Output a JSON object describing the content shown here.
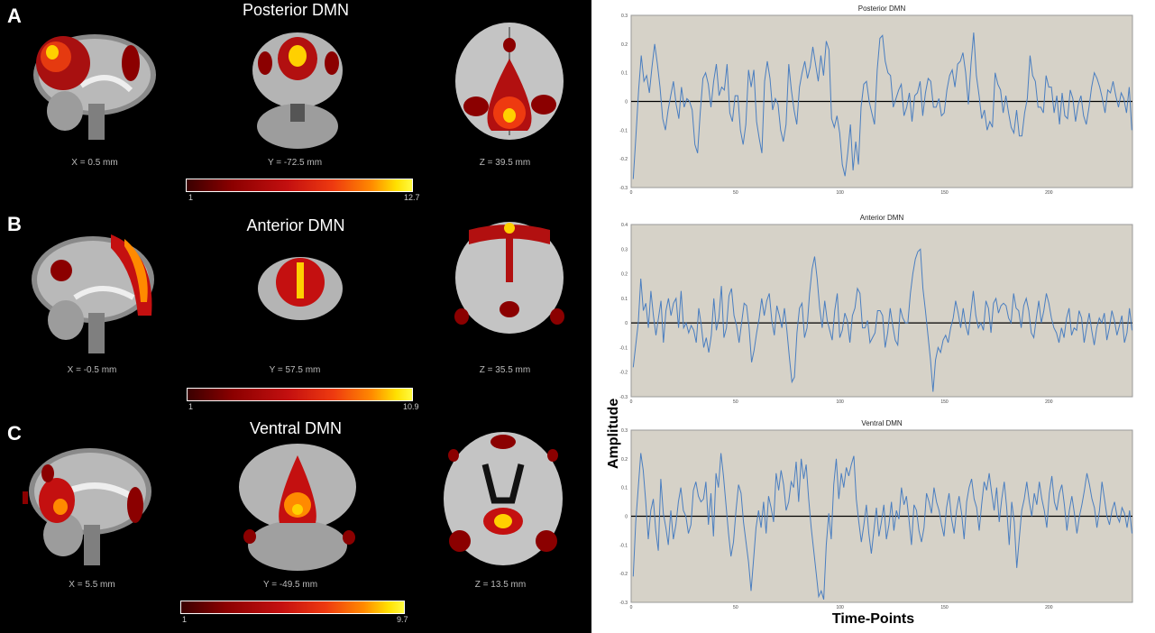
{
  "panels": [
    {
      "letter": "A",
      "title": "Posterior DMN",
      "coords": [
        "X = 0.5 mm",
        "Y = -72.5 mm",
        "Z = 39.5 mm"
      ],
      "cbar": {
        "min": "1",
        "max": "12.7"
      }
    },
    {
      "letter": "B",
      "title": "Anterior DMN",
      "coords": [
        "X = -0.5 mm",
        "Y = 57.5 mm",
        "Z = 35.5 mm"
      ],
      "cbar": {
        "min": "1",
        "max": "10.9"
      }
    },
    {
      "letter": "C",
      "title": "Ventral DMN",
      "coords": [
        "X = 5.5 mm",
        "Y = -49.5 mm",
        "Z = 13.5 mm"
      ],
      "cbar": {
        "min": "1",
        "max": "9.7"
      }
    }
  ],
  "colors": {
    "plot_bg": "#d6d2c8",
    "series": "#4a7ec0",
    "zero_line": "#000000",
    "colormap": [
      "#3a0000",
      "#8b0000",
      "#c41010",
      "#ee3a10",
      "#ff8a00",
      "#ffe000"
    ]
  },
  "ylabel": "Amplitude",
  "xlabel": "Time-Points",
  "chart_data": [
    {
      "type": "line",
      "title": "Posterior DMN",
      "xlim": [
        0,
        240
      ],
      "ylim": [
        -0.3,
        0.3
      ],
      "yticks": [
        "0.3",
        "0.2",
        "0.1",
        "0",
        "-0.1",
        "-0.2",
        "-0.3"
      ],
      "xticks": [
        {
          "v": 0,
          "l": "0"
        },
        {
          "v": 50,
          "l": "50"
        },
        {
          "v": 100,
          "l": "100"
        },
        {
          "v": 150,
          "l": "150"
        },
        {
          "v": 200,
          "l": "200"
        }
      ],
      "values": [
        -0.27,
        -0.12,
        0.04,
        0.16,
        0.07,
        0.09,
        0.03,
        0.12,
        0.2,
        0.13,
        0.05,
        -0.06,
        -0.1,
        -0.03,
        0.02,
        0.07,
        -0.01,
        -0.06,
        0.05,
        -0.02,
        0.01,
        0.0,
        -0.03,
        -0.15,
        -0.18,
        -0.04,
        0.08,
        0.1,
        0.06,
        -0.02,
        0.07,
        0.13,
        0.02,
        0.05,
        0.04,
        0.13,
        -0.04,
        -0.07,
        0.02,
        0.02,
        -0.1,
        -0.15,
        -0.08,
        0.11,
        0.05,
        0.11,
        -0.07,
        -0.13,
        -0.18,
        0.07,
        0.14,
        0.08,
        -0.03,
        0.01,
        -0.01,
        -0.1,
        -0.14,
        -0.08,
        0.13,
        0.04,
        -0.03,
        -0.08,
        0.05,
        0.1,
        0.14,
        0.08,
        0.12,
        0.19,
        0.13,
        0.07,
        0.16,
        0.09,
        0.21,
        0.18,
        -0.06,
        -0.09,
        -0.05,
        -0.11,
        -0.22,
        -0.26,
        -0.18,
        -0.08,
        -0.24,
        -0.14,
        -0.22,
        -0.02,
        0.06,
        0.07,
        0.0,
        -0.04,
        -0.08,
        0.11,
        0.22,
        0.23,
        0.14,
        0.1,
        0.09,
        -0.02,
        0.01,
        0.04,
        0.06,
        -0.05,
        -0.02,
        0.03,
        -0.07,
        0.02,
        0.03,
        0.07,
        -0.05,
        0.03,
        0.08,
        0.07,
        -0.02,
        -0.02,
        0.01,
        -0.05,
        -0.04,
        0.04,
        0.09,
        0.11,
        0.05,
        0.13,
        0.14,
        0.17,
        0.1,
        -0.01,
        0.13,
        0.24,
        0.09,
        0.02,
        -0.06,
        -0.03,
        -0.1,
        -0.07,
        -0.09,
        0.1,
        0.06,
        0.04,
        -0.04,
        0.02,
        -0.04,
        -0.09,
        -0.11,
        -0.03,
        -0.12,
        -0.12,
        -0.04,
        0.01,
        0.16,
        0.09,
        0.07,
        -0.02,
        -0.02,
        -0.04,
        0.09,
        0.05,
        0.05,
        -0.04,
        0.02,
        -0.08,
        0.03,
        -0.05,
        -0.06,
        0.04,
        0.01,
        -0.07,
        -0.01,
        0.02,
        -0.05,
        -0.08,
        -0.02,
        0.05,
        0.1,
        0.08,
        0.05,
        0.01,
        -0.04,
        0.04,
        0.03,
        0.07,
        0.02,
        -0.02,
        0.03,
        0.01,
        -0.04,
        0.05,
        -0.1
      ]
    },
    {
      "type": "line",
      "title": "Anterior DMN",
      "xlim": [
        0,
        240
      ],
      "ylim": [
        -0.3,
        0.4
      ],
      "yticks": [
        "0.4",
        "0.3",
        "0.2",
        "0.1",
        "0",
        "-0.1",
        "-0.2",
        "-0.3"
      ],
      "xticks": [
        {
          "v": 0,
          "l": "0"
        },
        {
          "v": 50,
          "l": "50"
        },
        {
          "v": 100,
          "l": "100"
        },
        {
          "v": 150,
          "l": "150"
        },
        {
          "v": 200,
          "l": "200"
        }
      ],
      "values": [
        -0.18,
        -0.09,
        0.0,
        0.18,
        0.05,
        0.08,
        -0.02,
        0.13,
        0.03,
        -0.05,
        0.02,
        0.09,
        -0.08,
        0.05,
        0.1,
        0.03,
        0.08,
        0.1,
        -0.02,
        0.13,
        -0.02,
        0.0,
        -0.04,
        -0.01,
        -0.03,
        -0.08,
        0.06,
        -0.01,
        -0.1,
        -0.06,
        -0.12,
        -0.05,
        0.1,
        -0.03,
        0.02,
        0.15,
        -0.06,
        -0.02,
        0.11,
        0.14,
        0.03,
        -0.01,
        -0.08,
        0.0,
        0.08,
        0.07,
        -0.02,
        -0.16,
        -0.11,
        -0.04,
        0.02,
        0.1,
        0.03,
        0.09,
        0.12,
        0.01,
        -0.05,
        0.07,
        0.03,
        -0.02,
        0.06,
        -0.03,
        -0.14,
        -0.24,
        -0.22,
        -0.04,
        0.06,
        0.08,
        -0.06,
        -0.02,
        0.12,
        0.22,
        0.27,
        0.18,
        0.06,
        -0.02,
        0.09,
        0.01,
        -0.03,
        -0.07,
        0.05,
        0.12,
        -0.06,
        -0.03,
        0.04,
        0.01,
        -0.08,
        0.03,
        0.06,
        0.14,
        0.12,
        -0.02,
        -0.02,
        0.01,
        -0.08,
        -0.06,
        -0.04,
        0.05,
        0.05,
        0.03,
        -0.1,
        -0.04,
        0.06,
        -0.01,
        -0.07,
        -0.09,
        0.06,
        0.02,
        0.0,
        0.0,
        0.12,
        0.2,
        0.26,
        0.29,
        0.3,
        0.14,
        0.05,
        -0.05,
        -0.15,
        -0.28,
        -0.15,
        -0.1,
        -0.12,
        -0.07,
        -0.05,
        -0.08,
        -0.02,
        0.02,
        0.09,
        0.04,
        -0.02,
        0.06,
        -0.01,
        -0.05,
        0.04,
        0.13,
        0.03,
        -0.02,
        0.0,
        -0.03,
        0.09,
        0.06,
        -0.04,
        0.08,
        0.1,
        0.04,
        0.07,
        0.08,
        0.07,
        0.02,
        0.0,
        0.12,
        0.06,
        0.05,
        -0.02,
        0.07,
        0.1,
        0.05,
        -0.04,
        -0.06,
        0.02,
        0.09,
        0.0,
        0.05,
        0.12,
        0.08,
        0.02,
        -0.02,
        -0.04,
        -0.08,
        -0.02,
        -0.06,
        0.02,
        0.06,
        -0.05,
        -0.02,
        -0.03,
        0.05,
        0.02,
        -0.08,
        -0.02,
        0.04,
        -0.03,
        -0.09,
        -0.02,
        0.02,
        0.0,
        0.04,
        -0.07,
        -0.02,
        0.05,
        0.01,
        -0.05,
        -0.01,
        0.03,
        -0.08,
        -0.04,
        0.06,
        -0.03
      ]
    },
    {
      "type": "line",
      "title": "Ventral DMN",
      "xlim": [
        0,
        240
      ],
      "ylim": [
        -0.3,
        0.3
      ],
      "yticks": [
        "0.3",
        "0.2",
        "0.1",
        "0",
        "-0.1",
        "-0.2",
        "-0.3"
      ],
      "xticks": [
        {
          "v": 0,
          "l": "0"
        },
        {
          "v": 50,
          "l": "50"
        },
        {
          "v": 100,
          "l": "100"
        },
        {
          "v": 150,
          "l": "150"
        },
        {
          "v": 200,
          "l": "200"
        }
      ],
      "values": [
        -0.21,
        -0.02,
        0.1,
        0.22,
        0.16,
        0.05,
        -0.08,
        0.02,
        0.06,
        -0.05,
        -0.12,
        0.13,
        0.01,
        -0.04,
        -0.1,
        0.02,
        -0.08,
        -0.03,
        0.05,
        0.1,
        0.02,
        0.0,
        -0.06,
        -0.03,
        0.09,
        0.12,
        0.07,
        0.05,
        0.06,
        0.12,
        -0.03,
        0.08,
        -0.07,
        0.15,
        0.1,
        0.22,
        0.14,
        0.04,
        -0.06,
        -0.14,
        -0.09,
        0.02,
        0.11,
        0.08,
        -0.02,
        -0.09,
        -0.16,
        -0.26,
        -0.15,
        -0.04,
        0.02,
        -0.04,
        0.05,
        -0.06,
        0.07,
        0.03,
        -0.02,
        0.15,
        0.09,
        0.16,
        0.11,
        0.02,
        0.05,
        0.12,
        0.1,
        0.19,
        0.05,
        0.2,
        0.13,
        0.18,
        0.06,
        -0.04,
        -0.12,
        -0.2,
        -0.28,
        -0.26,
        -0.29,
        -0.1,
        0.01,
        -0.08,
        0.11,
        0.2,
        0.06,
        0.15,
        0.1,
        0.17,
        0.14,
        0.18,
        0.21,
        0.06,
        -0.02,
        -0.09,
        -0.03,
        0.04,
        -0.06,
        -0.13,
        -0.05,
        0.03,
        -0.07,
        -0.02,
        0.04,
        -0.08,
        -0.03,
        0.05,
        -0.05,
        0.02,
        -0.01,
        0.1,
        0.04,
        0.07,
        -0.01,
        -0.1,
        0.04,
        0.02,
        -0.05,
        -0.09,
        -0.04,
        0.08,
        0.05,
        0.01,
        0.1,
        0.05,
        0.02,
        -0.03,
        -0.07,
        0.03,
        0.08,
        -0.01,
        -0.06,
        0.02,
        0.07,
        0.01,
        -0.08,
        0.05,
        0.1,
        0.13,
        0.06,
        0.03,
        -0.05,
        0.04,
        0.12,
        0.09,
        0.15,
        0.08,
        0.02,
        0.1,
        -0.02,
        0.06,
        0.12,
        0.03,
        -0.1,
        0.05,
        -0.02,
        -0.18,
        -0.08,
        0.02,
        0.06,
        0.12,
        0.05,
        0.0,
        0.08,
        0.04,
        0.12,
        0.06,
        0.02,
        -0.04,
        0.08,
        0.14,
        0.05,
        0.02,
        0.08,
        0.11,
        0.04,
        -0.05,
        0.02,
        0.07,
        0.01,
        -0.06,
        0.0,
        0.04,
        0.09,
        0.15,
        0.11,
        0.06,
        0.03,
        -0.04,
        0.02,
        0.12,
        0.06,
        0.0,
        -0.03,
        0.02,
        0.05,
        0.0,
        -0.02,
        0.03,
        0.01,
        -0.04,
        0.02,
        -0.06
      ]
    }
  ]
}
